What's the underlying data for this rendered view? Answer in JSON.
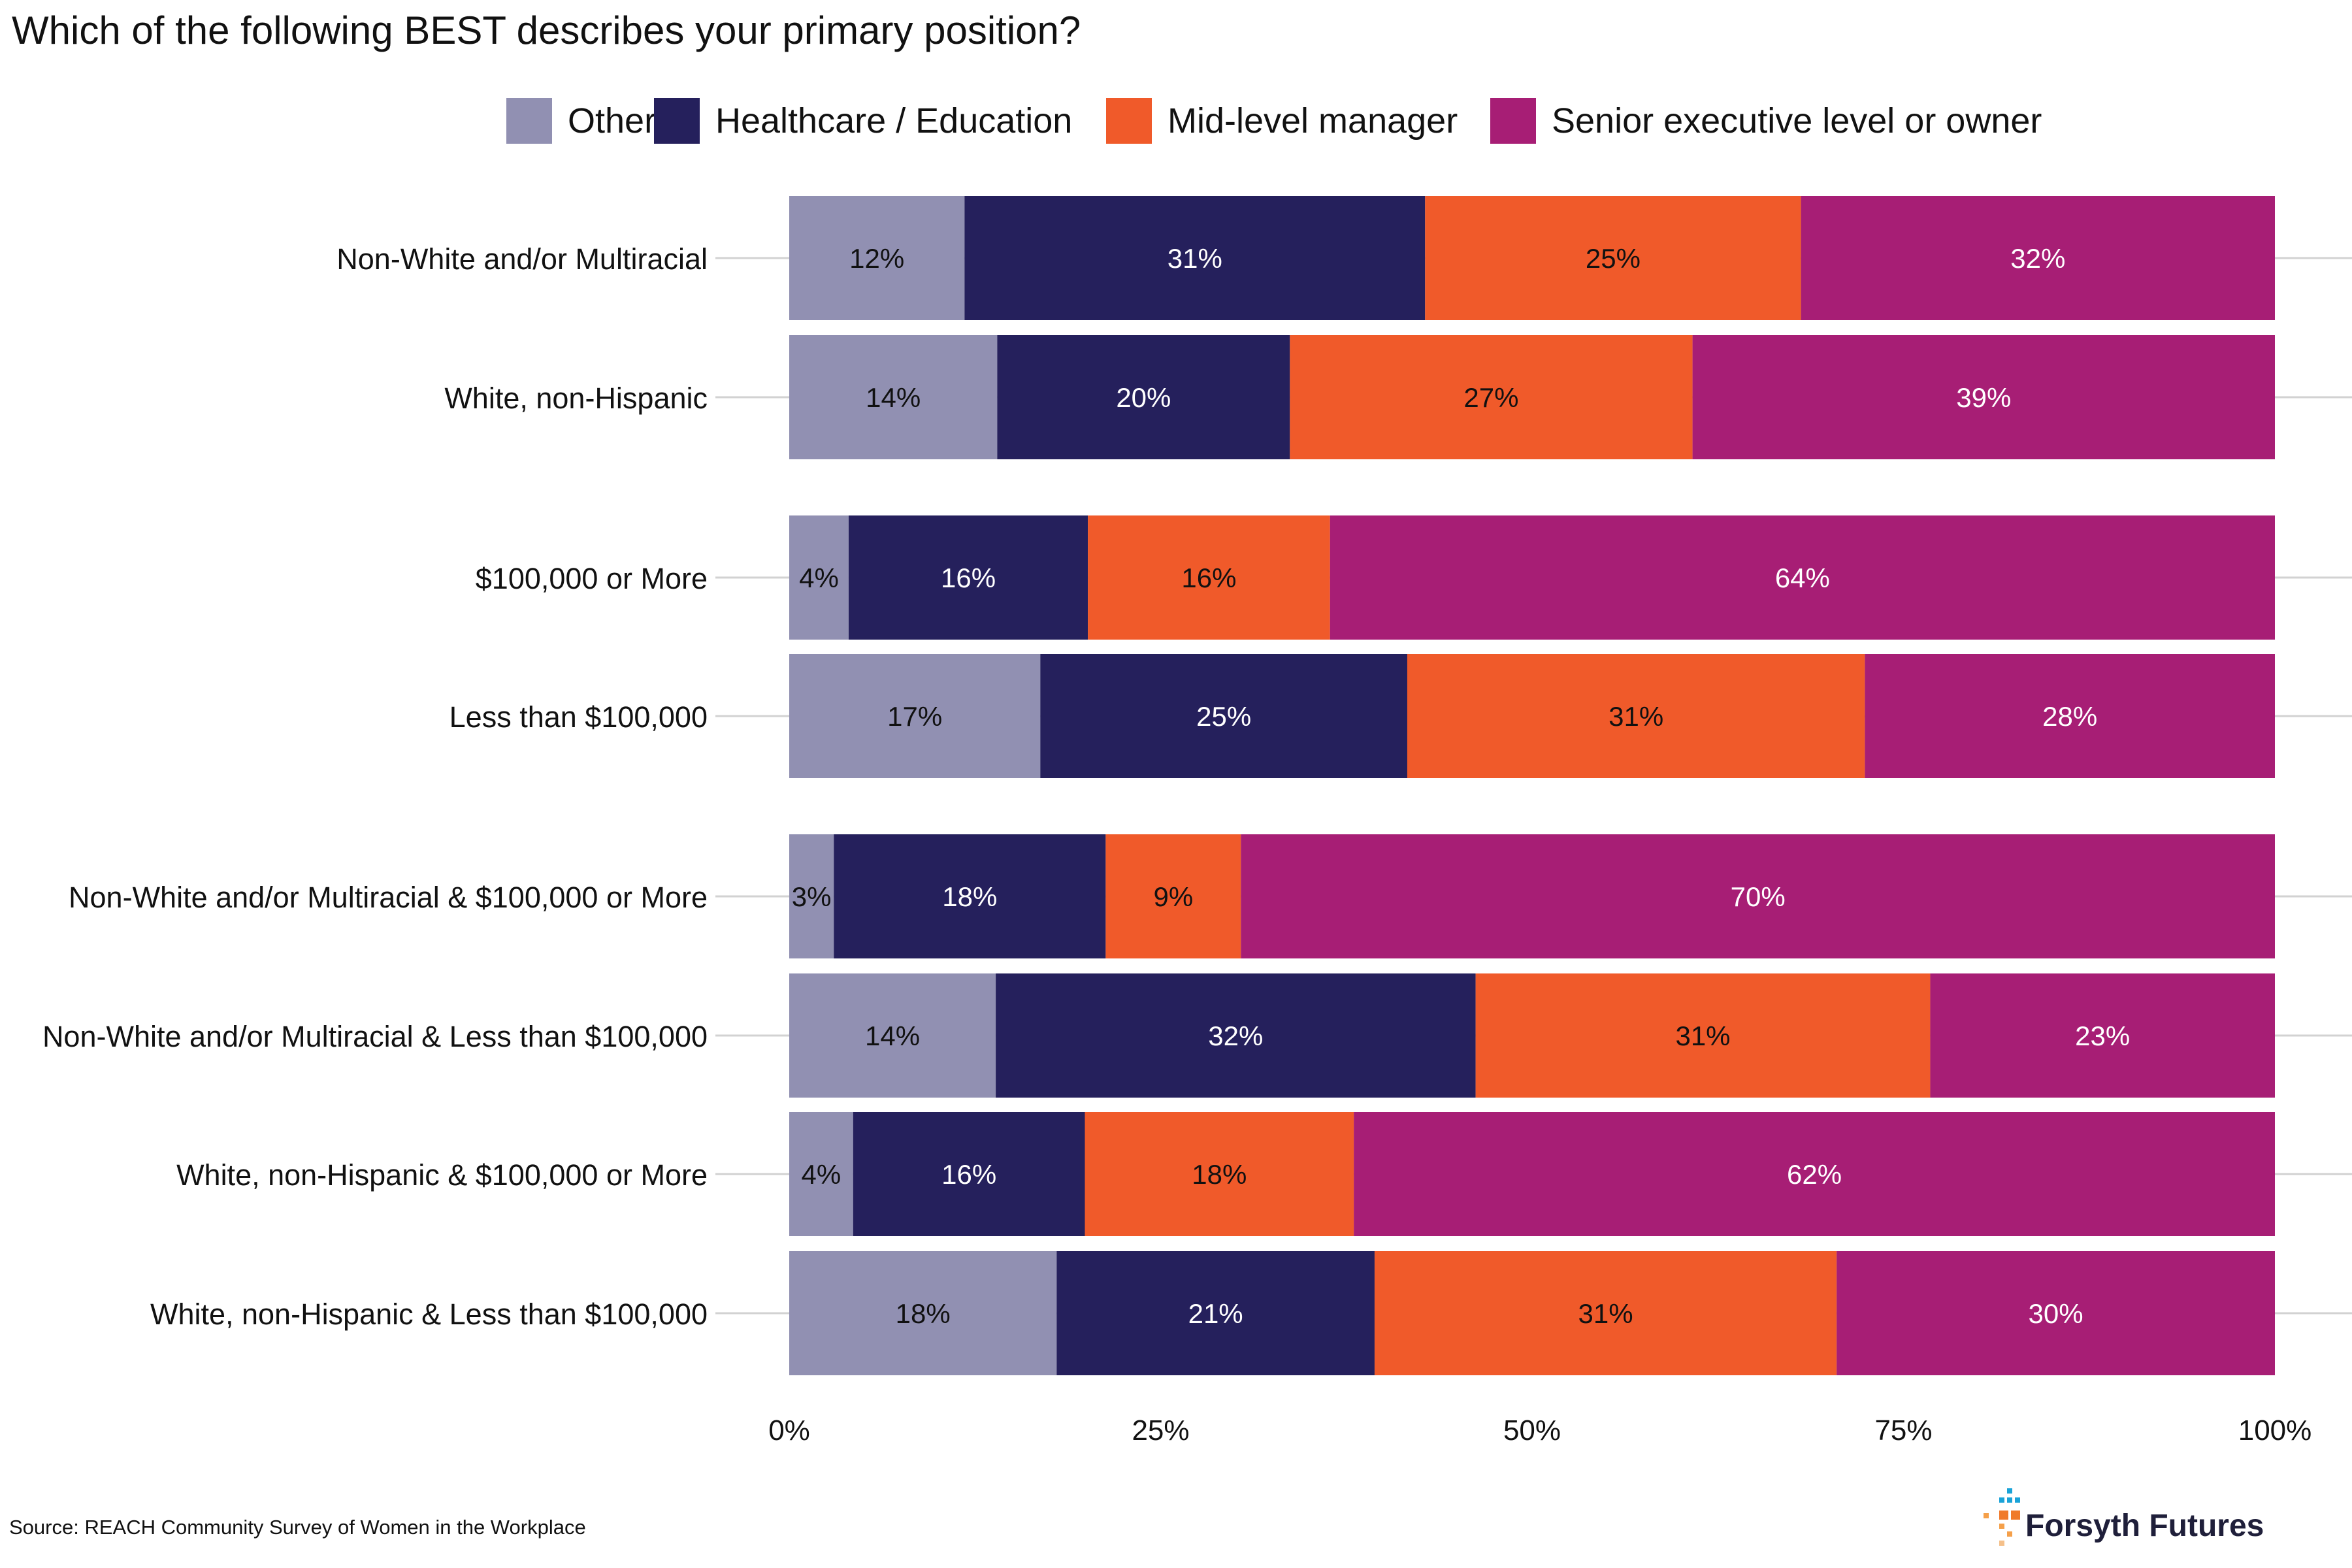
{
  "chart_data": {
    "type": "bar",
    "orientation": "horizontal",
    "stacked": true,
    "title": "Which of the following BEST describes your primary position?",
    "categories": [
      "Non-White and/or Multiracial",
      "White, non-Hispanic",
      "$100,000 or More",
      "Less than $100,000",
      "Non-White and/or Multiracial & $100,000 or More",
      "Non-White and/or Multiracial & Less than $100,000",
      "White, non-Hispanic & $100,000 or More",
      "White, non-Hispanic & Less than $100,000"
    ],
    "series": [
      {
        "name": "Other",
        "color": "#9190b2",
        "values": [
          11.8,
          14.0,
          4.0,
          16.9,
          3.0,
          13.9,
          4.3,
          18.0
        ],
        "labels": [
          "12%",
          "14%",
          "4%",
          "17%",
          "3%",
          "14%",
          "4%",
          "18%"
        ]
      },
      {
        "name": "Healthcare / Education",
        "color": "#25205c",
        "values": [
          31.0,
          19.7,
          16.1,
          24.7,
          18.3,
          32.3,
          15.6,
          21.4
        ],
        "labels": [
          "31%",
          "20%",
          "16%",
          "25%",
          "18%",
          "32%",
          "16%",
          "21%"
        ]
      },
      {
        "name": "Mid-level manager",
        "color": "#f05a2a",
        "values": [
          25.3,
          27.1,
          16.3,
          30.8,
          9.1,
          30.6,
          18.1,
          31.1
        ],
        "labels": [
          "25%",
          "27%",
          "16%",
          "31%",
          "9%",
          "31%",
          "18%",
          "31%"
        ]
      },
      {
        "name": "Senior executive level or owner",
        "color": "#a71e75",
        "values": [
          31.9,
          39.2,
          63.6,
          27.6,
          69.6,
          23.2,
          62.0,
          29.5
        ],
        "labels": [
          "32%",
          "39%",
          "64%",
          "28%",
          "70%",
          "23%",
          "62%",
          "30%"
        ]
      }
    ],
    "xlim": [
      0,
      100
    ],
    "xticks": [
      0,
      25,
      50,
      75,
      100
    ],
    "xtick_labels": [
      "0%",
      "25%",
      "50%",
      "75%",
      "100%"
    ],
    "legend_position": "top",
    "grid": true
  },
  "source": "Source: REACH Community Survey of Women in the Workplace",
  "logo": {
    "text": "Forsyth Futures"
  }
}
